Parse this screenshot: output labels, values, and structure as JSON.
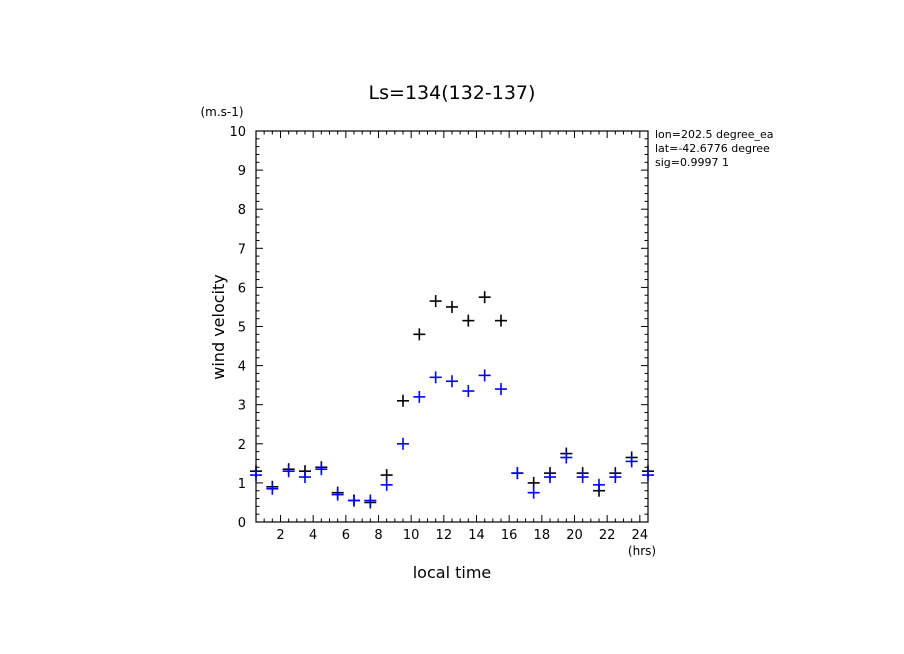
{
  "chart_data": {
    "type": "scatter",
    "title": "Ls=134(132-137)",
    "xlabel": "local time",
    "ylabel": "wind velocity",
    "x_unit": "(hrs)",
    "y_unit": "(m.s-1)",
    "xlim": [
      0.5,
      24.5
    ],
    "ylim": [
      0,
      10
    ],
    "xticks": [
      "2",
      "4",
      "6",
      "8",
      "10",
      "12",
      "14",
      "16",
      "18",
      "20",
      "22",
      "24"
    ],
    "yticks": [
      "0",
      "1",
      "2",
      "3",
      "4",
      "5",
      "6",
      "7",
      "8",
      "9",
      "10"
    ],
    "info_lines": [
      "lon=202.5 degree_ea",
      "lat=-42.6776 degree",
      "sig=0.9997 1"
    ],
    "grid": false,
    "legend": "none",
    "series": [
      {
        "color": "#000000",
        "marker": "plus",
        "x": [
          0.5,
          1.5,
          2.5,
          3.5,
          4.5,
          5.5,
          6.5,
          7.5,
          8.5,
          9.5,
          10.5,
          11.5,
          12.5,
          13.5,
          14.5,
          15.5,
          16.5,
          17.5,
          18.5,
          19.5,
          20.5,
          21.5,
          22.5,
          23.5,
          24.5
        ],
        "y": [
          1.3,
          0.9,
          1.35,
          1.3,
          1.4,
          0.75,
          0.55,
          0.5,
          1.2,
          3.1,
          4.8,
          5.65,
          5.5,
          5.15,
          5.75,
          5.15,
          1.25,
          1.0,
          1.25,
          1.75,
          1.25,
          0.8,
          1.25,
          1.65,
          1.3
        ]
      },
      {
        "color": "#0000ff",
        "marker": "plus",
        "x": [
          0.5,
          1.5,
          2.5,
          3.5,
          4.5,
          5.5,
          6.5,
          7.5,
          8.5,
          9.5,
          10.5,
          11.5,
          12.5,
          13.5,
          14.5,
          15.5,
          16.5,
          17.5,
          18.5,
          19.5,
          20.5,
          21.5,
          22.5,
          23.5,
          24.5
        ],
        "y": [
          1.2,
          0.85,
          1.3,
          1.15,
          1.35,
          0.7,
          0.55,
          0.55,
          0.95,
          2.0,
          3.2,
          3.7,
          3.6,
          3.35,
          3.75,
          3.4,
          1.25,
          0.75,
          1.15,
          1.65,
          1.15,
          0.95,
          1.15,
          1.55,
          1.2
        ]
      }
    ]
  }
}
